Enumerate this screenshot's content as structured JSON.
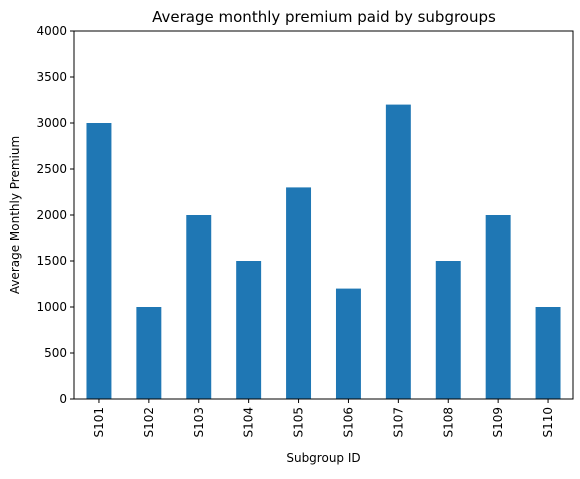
{
  "chart_data": {
    "type": "bar",
    "title": "Average monthly premium paid by subgroups",
    "xlabel": "Subgroup ID",
    "ylabel": "Average Monthly Premium",
    "categories": [
      "S101",
      "S102",
      "S103",
      "S104",
      "S105",
      "S106",
      "S107",
      "S108",
      "S109",
      "S110"
    ],
    "values": [
      3000,
      1000,
      2000,
      1500,
      2300,
      1200,
      3200,
      1500,
      2000,
      1000
    ],
    "ylim": [
      0,
      4000
    ],
    "yticks": [
      0,
      500,
      1000,
      1500,
      2000,
      2500,
      3000,
      3500,
      4000
    ],
    "grid": false,
    "legend": "none",
    "bar_color": "#1f77b4"
  }
}
